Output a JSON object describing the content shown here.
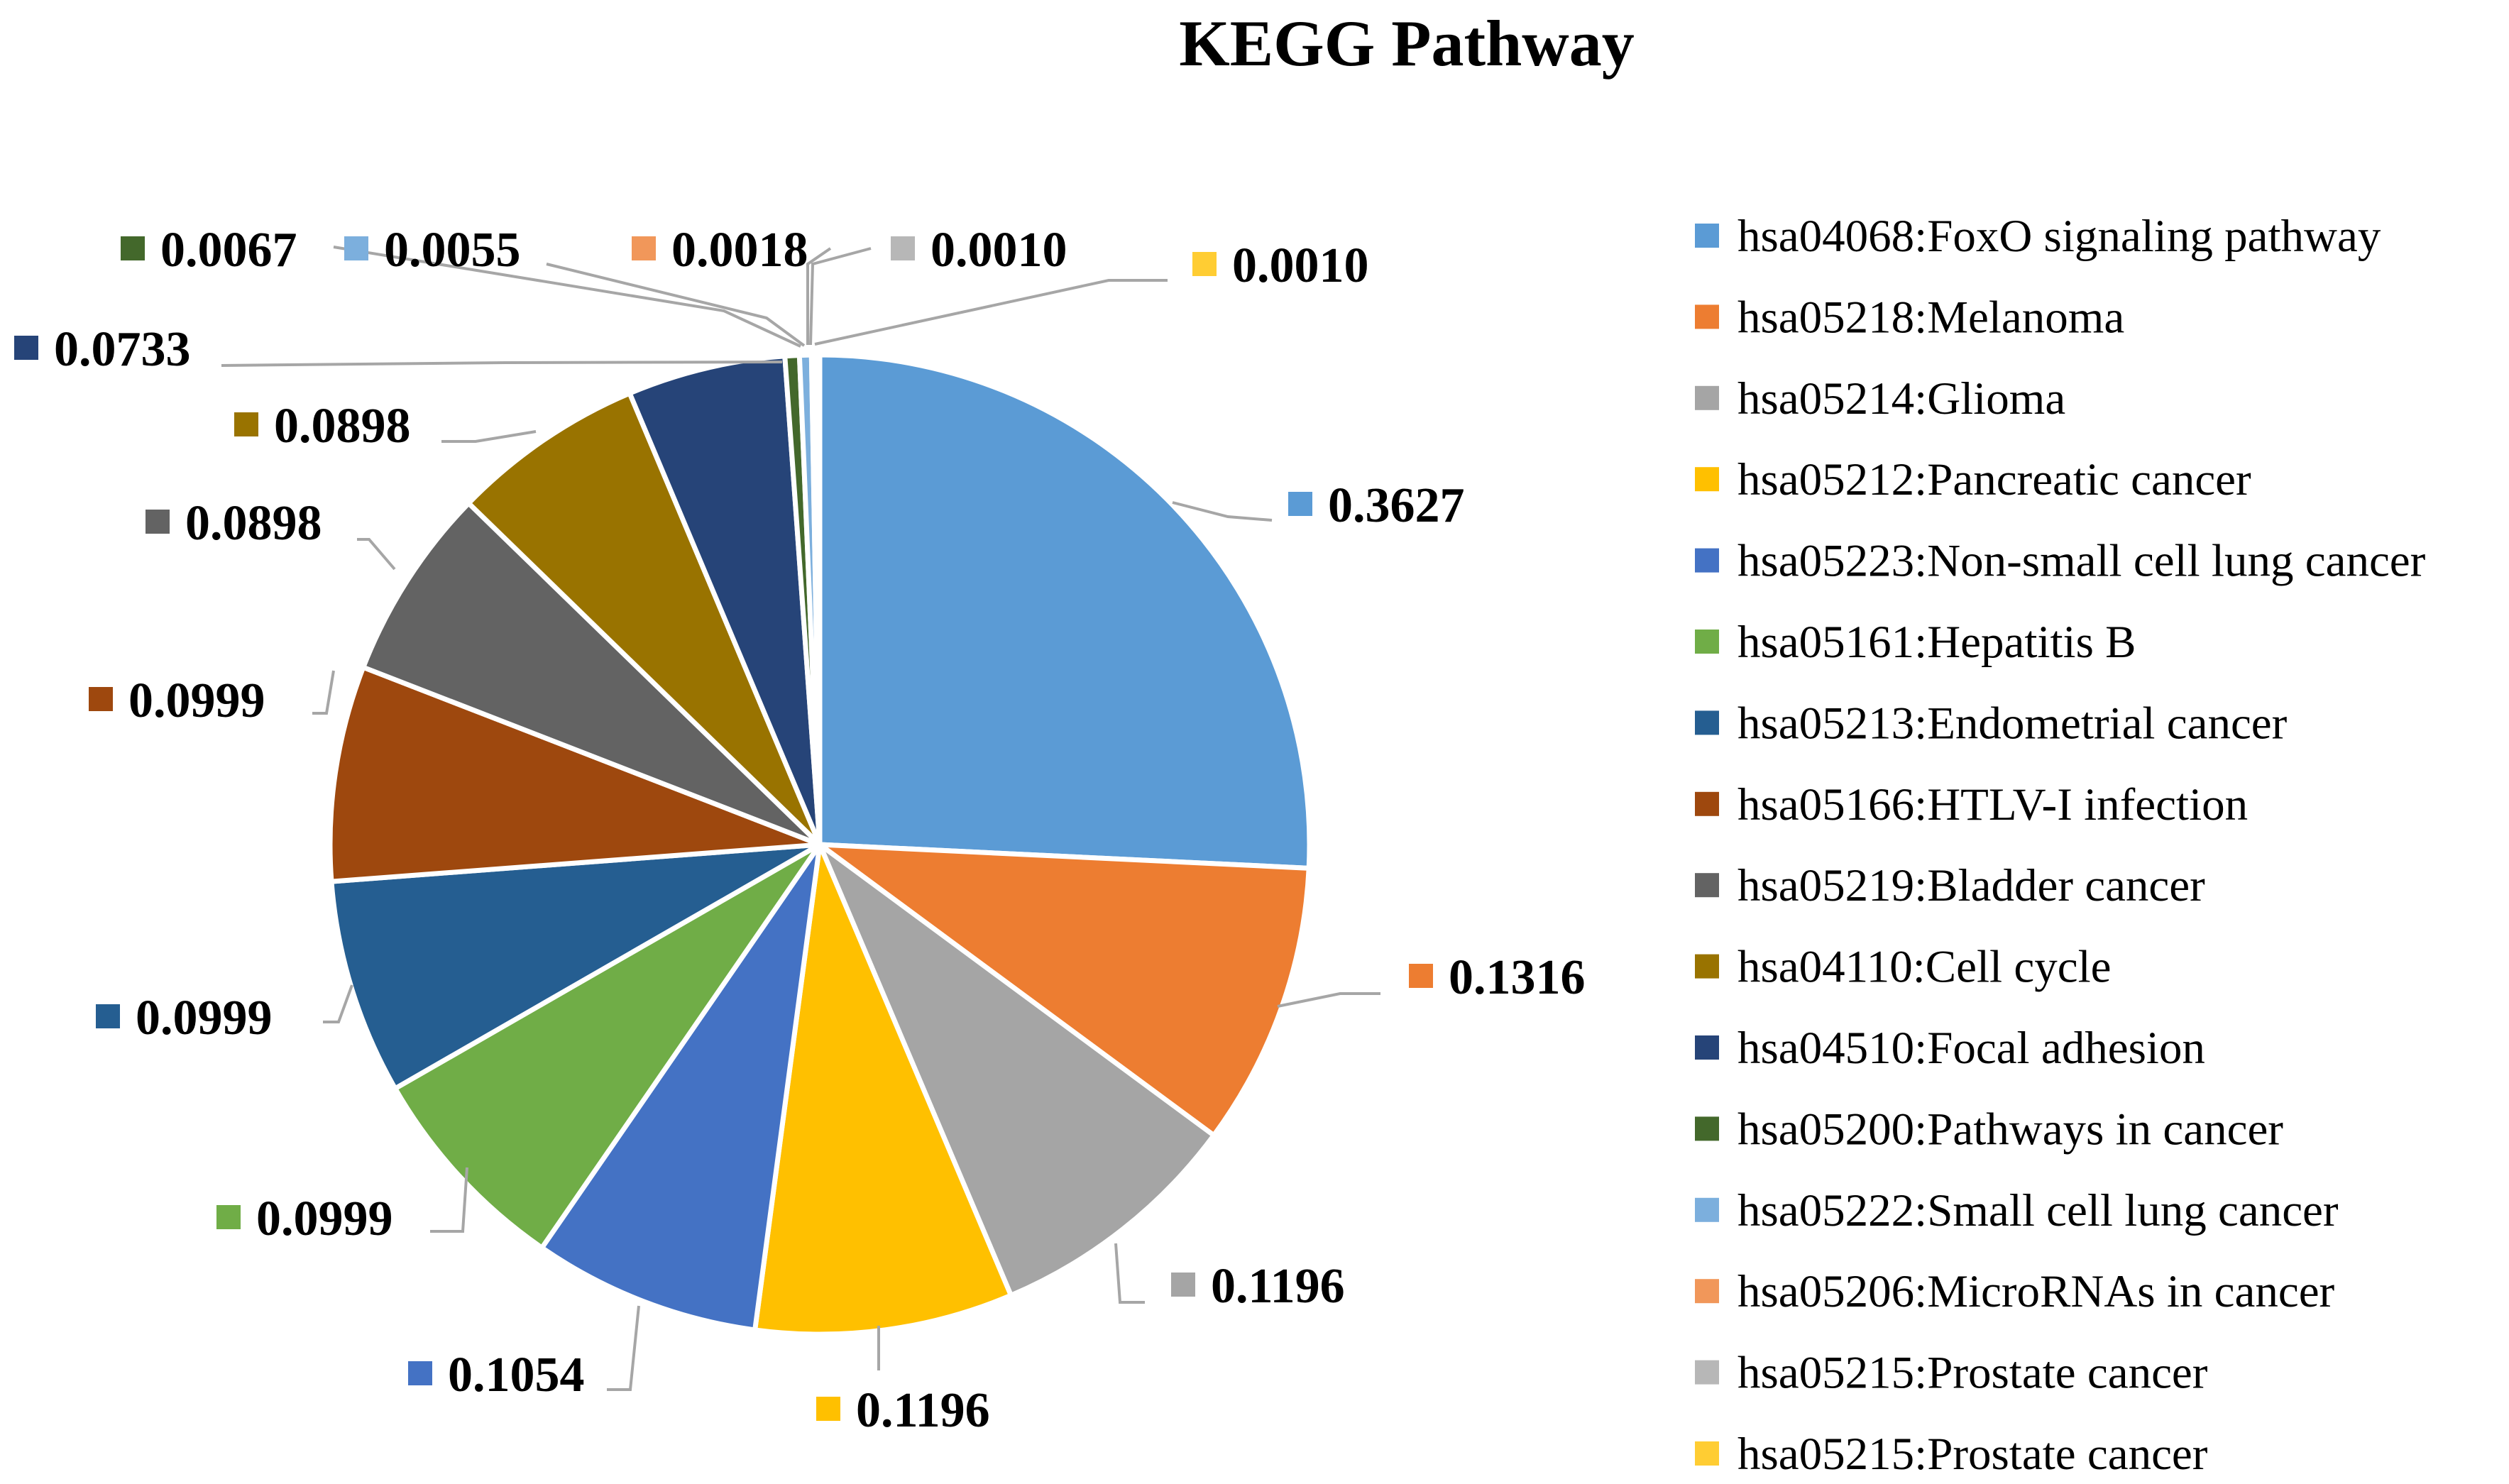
{
  "chart_data": {
    "type": "pie",
    "title": "KEGG Pathway",
    "legend_position": "right",
    "slices": [
      {
        "label": "hsa04068:FoxO signaling pathway",
        "value": 0.3627,
        "value_text": "0.3627",
        "color": "#5b9bd5"
      },
      {
        "label": "hsa05218:Melanoma",
        "value": 0.1316,
        "value_text": "0.1316",
        "color": "#ed7d31"
      },
      {
        "label": "hsa05214:Glioma",
        "value": 0.1196,
        "value_text": "0.1196",
        "color": "#a5a5a5"
      },
      {
        "label": "hsa05212:Pancreatic cancer",
        "value": 0.1196,
        "value_text": "0.1196",
        "color": "#ffc000"
      },
      {
        "label": "hsa05223:Non-small cell lung cancer",
        "value": 0.1054,
        "value_text": "0.1054",
        "color": "#4472c4"
      },
      {
        "label": "hsa05161:Hepatitis B",
        "value": 0.0999,
        "value_text": "0.0999",
        "color": "#70ad47"
      },
      {
        "label": "hsa05213:Endometrial cancer",
        "value": 0.0999,
        "value_text": "0.0999",
        "color": "#255e91"
      },
      {
        "label": "hsa05166:HTLV-I infection",
        "value": 0.0999,
        "value_text": "0.0999",
        "color": "#9e480e"
      },
      {
        "label": "hsa05219:Bladder cancer",
        "value": 0.0898,
        "value_text": "0.0898",
        "color": "#636363"
      },
      {
        "label": "hsa04110:Cell cycle",
        "value": 0.0898,
        "value_text": "0.0898",
        "color": "#997300"
      },
      {
        "label": "hsa04510:Focal adhesion",
        "value": 0.0733,
        "value_text": "0.0733",
        "color": "#264478"
      },
      {
        "label": "hsa05200:Pathways in cancer",
        "value": 0.0067,
        "value_text": "0.0067",
        "color": "#43682b"
      },
      {
        "label": "hsa05222:Small cell lung cancer",
        "value": 0.0055,
        "value_text": "0.0055",
        "color": "#7cafdd"
      },
      {
        "label": "hsa05206:MicroRNAs in cancer",
        "value": 0.0018,
        "value_text": "0.0018",
        "color": "#f1975a"
      },
      {
        "label": "hsa05215:Prostate cancer",
        "value": 0.001,
        "value_text": "0.0010",
        "color": "#b7b7b7"
      },
      {
        "label": "hsa05215:Prostate cancer",
        "value": 0.001,
        "value_text": "0.0010",
        "color": "#ffcd33"
      }
    ]
  }
}
